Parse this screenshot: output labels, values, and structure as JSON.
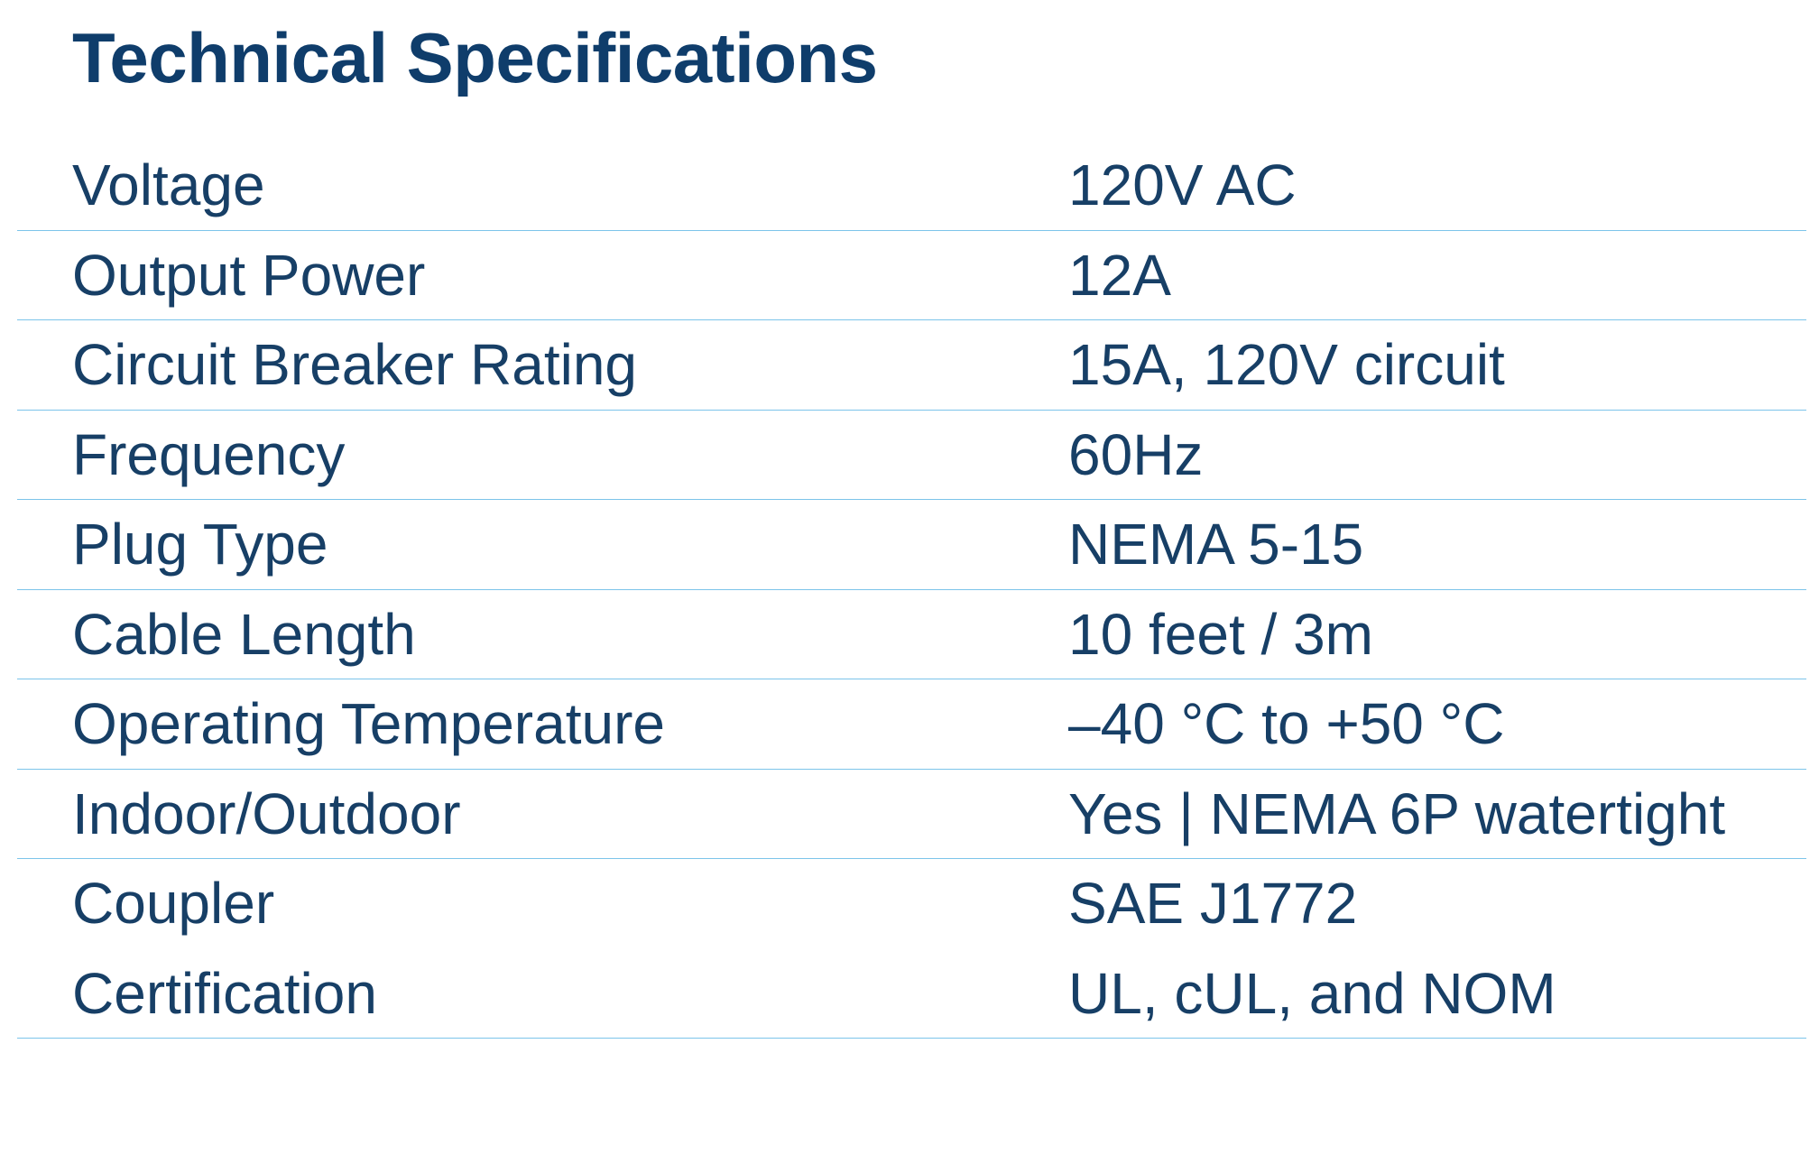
{
  "title": "Technical Specifications",
  "table": {
    "rows": [
      [
        "Voltage",
        "120V AC"
      ],
      [
        "Output Power",
        "12A"
      ],
      [
        "Circuit Breaker Rating",
        "15A, 120V circuit"
      ],
      [
        "Frequency",
        "60Hz"
      ],
      [
        "Plug Type",
        "NEMA 5-15"
      ],
      [
        "Cable Length",
        "10 feet / 3m"
      ],
      [
        "Operating Temperature",
        "–40 °C to +50 °C"
      ],
      [
        "Indoor/Outdoor",
        "Yes | NEMA 6P watertight"
      ],
      [
        "Coupler",
        "SAE J1772"
      ],
      [
        "Certification",
        "UL, cUL, and NOM"
      ]
    ]
  }
}
